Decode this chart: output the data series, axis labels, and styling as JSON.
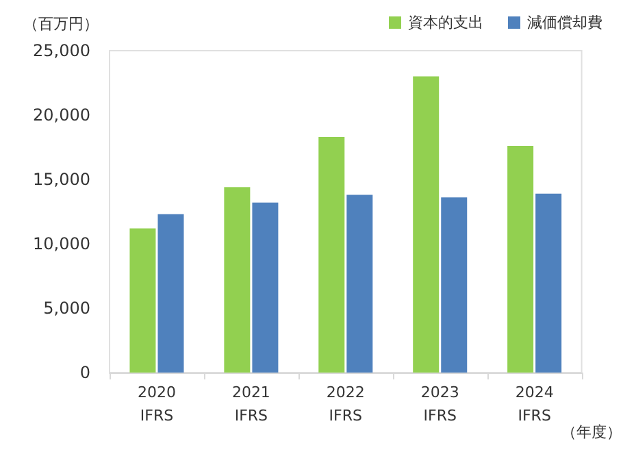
{
  "chart_data": {
    "type": "bar",
    "ylabel": "（百万円）",
    "xlabel": "（年度）",
    "categories": [
      "2020\nIFRS",
      "2021\nIFRS",
      "2022\nIFRS",
      "2023\nIFRS",
      "2024\nIFRS"
    ],
    "series": [
      {
        "name": "資本的支出",
        "color": "#92d050",
        "values": [
          11200,
          14400,
          18300,
          23000,
          17600
        ]
      },
      {
        "name": "減価償却費",
        "color": "#4f81bd",
        "values": [
          12300,
          13200,
          13800,
          13600,
          13900
        ]
      }
    ],
    "ylim": [
      0,
      25000
    ],
    "yticks": [
      0,
      {
        "value": 5000,
        "label": "5,000"
      },
      {
        "value": 10000,
        "label": "10,000"
      },
      {
        "value": 15000,
        "label": "15,000"
      },
      {
        "value": 20000,
        "label": "20,000"
      },
      {
        "value": 25000,
        "label": "25,000"
      }
    ],
    "grid": false,
    "legend": "top right"
  }
}
